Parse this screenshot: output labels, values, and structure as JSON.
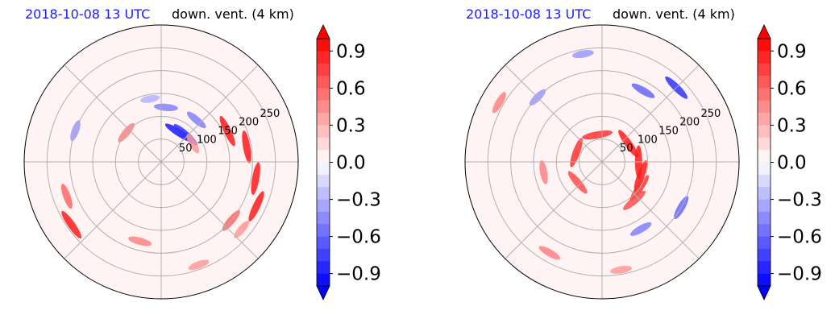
{
  "chart_data": [
    {
      "type": "heatmap",
      "projection": "polar",
      "title_left": "2018-10-08 13 UTC",
      "title_right": "down. vent. (4 km)",
      "radial_ticks": [
        "50",
        "100",
        "150",
        "200",
        "250"
      ],
      "radial_max": 300,
      "angular_gridlines_deg": [
        0,
        45,
        90,
        135,
        180,
        225,
        270,
        315
      ],
      "grid": true,
      "colorbar": {
        "vmin": -1.0,
        "vmax": 1.0,
        "extend": "both",
        "ticks": [
          "0.9",
          "0.6",
          "0.3",
          "0.0",
          "−0.3",
          "−0.6",
          "−0.9"
        ],
        "tick_values": [
          0.9,
          0.6,
          0.3,
          0.0,
          -0.3,
          -0.6,
          -0.9
        ],
        "colormap": "bwr",
        "colors": {
          "neg": "#0000ff",
          "mid": "#ffffff",
          "pos": "#ff0000"
        }
      },
      "features": [
        {
          "r": 75,
          "theta": 58,
          "value": -0.9
        },
        {
          "r": 80,
          "theta": 48,
          "value": -0.8
        },
        {
          "r": 120,
          "theta": 50,
          "value": -0.5
        },
        {
          "r": 160,
          "theta": 25,
          "value": 0.9
        },
        {
          "r": 190,
          "theta": 10,
          "value": 0.9
        },
        {
          "r": 210,
          "theta": -10,
          "value": 0.9
        },
        {
          "r": 230,
          "theta": -25,
          "value": 0.9
        },
        {
          "r": 200,
          "theta": -40,
          "value": 0.6
        },
        {
          "r": 120,
          "theta": 85,
          "value": -0.5
        },
        {
          "r": 140,
          "theta": 100,
          "value": -0.3
        },
        {
          "r": 220,
          "theta": 200,
          "value": 0.6
        },
        {
          "r": 240,
          "theta": 215,
          "value": 0.9
        },
        {
          "r": 200,
          "theta": 160,
          "value": -0.4
        },
        {
          "r": 180,
          "theta": 255,
          "value": 0.5
        },
        {
          "r": 240,
          "theta": 290,
          "value": 0.4
        },
        {
          "r": 100,
          "theta": 140,
          "value": 0.5
        },
        {
          "r": 80,
          "theta": 30,
          "value": 0.4
        },
        {
          "r": 230,
          "theta": 320,
          "value": 0.4
        }
      ]
    },
    {
      "type": "heatmap",
      "projection": "polar",
      "title_left": "2018-10-08 13 UTC",
      "title_right": "down. vent. (4 km)",
      "radial_ticks": [
        "50",
        "100",
        "150",
        "200",
        "250"
      ],
      "radial_max": 300,
      "angular_gridlines_deg": [
        0,
        45,
        90,
        135,
        180,
        225,
        270,
        315
      ],
      "grid": true,
      "colorbar": {
        "vmin": -1.0,
        "vmax": 1.0,
        "extend": "both",
        "ticks": [
          "0.9",
          "0.6",
          "0.3",
          "0.0",
          "−0.3",
          "−0.6",
          "−0.9"
        ],
        "tick_values": [
          0.9,
          0.6,
          0.3,
          0.0,
          -0.3,
          -0.6,
          -0.9
        ],
        "colormap": "bwr",
        "colors": {
          "neg": "#0000ff",
          "mid": "#ffffff",
          "pos": "#ff0000"
        }
      },
      "features": [
        {
          "r": 90,
          "theta": -20,
          "value": 0.9
        },
        {
          "r": 80,
          "theta": 0,
          "value": 0.9
        },
        {
          "r": 100,
          "theta": -35,
          "value": 0.8
        },
        {
          "r": 110,
          "theta": -50,
          "value": 0.7
        },
        {
          "r": 70,
          "theta": 35,
          "value": 0.9
        },
        {
          "r": 60,
          "theta": 100,
          "value": 0.8
        },
        {
          "r": 60,
          "theta": 160,
          "value": 0.8
        },
        {
          "r": 70,
          "theta": 220,
          "value": 0.7
        },
        {
          "r": 130,
          "theta": 190,
          "value": 0.5
        },
        {
          "r": 180,
          "theta": 60,
          "value": -0.6
        },
        {
          "r": 230,
          "theta": 45,
          "value": -0.8
        },
        {
          "r": 240,
          "theta": 100,
          "value": -0.4
        },
        {
          "r": 200,
          "theta": 135,
          "value": -0.4
        },
        {
          "r": 170,
          "theta": -60,
          "value": -0.5
        },
        {
          "r": 200,
          "theta": -30,
          "value": -0.6
        },
        {
          "r": 230,
          "theta": 240,
          "value": 0.5
        },
        {
          "r": 240,
          "theta": 280,
          "value": 0.4
        },
        {
          "r": 260,
          "theta": 150,
          "value": 0.5
        }
      ]
    }
  ]
}
